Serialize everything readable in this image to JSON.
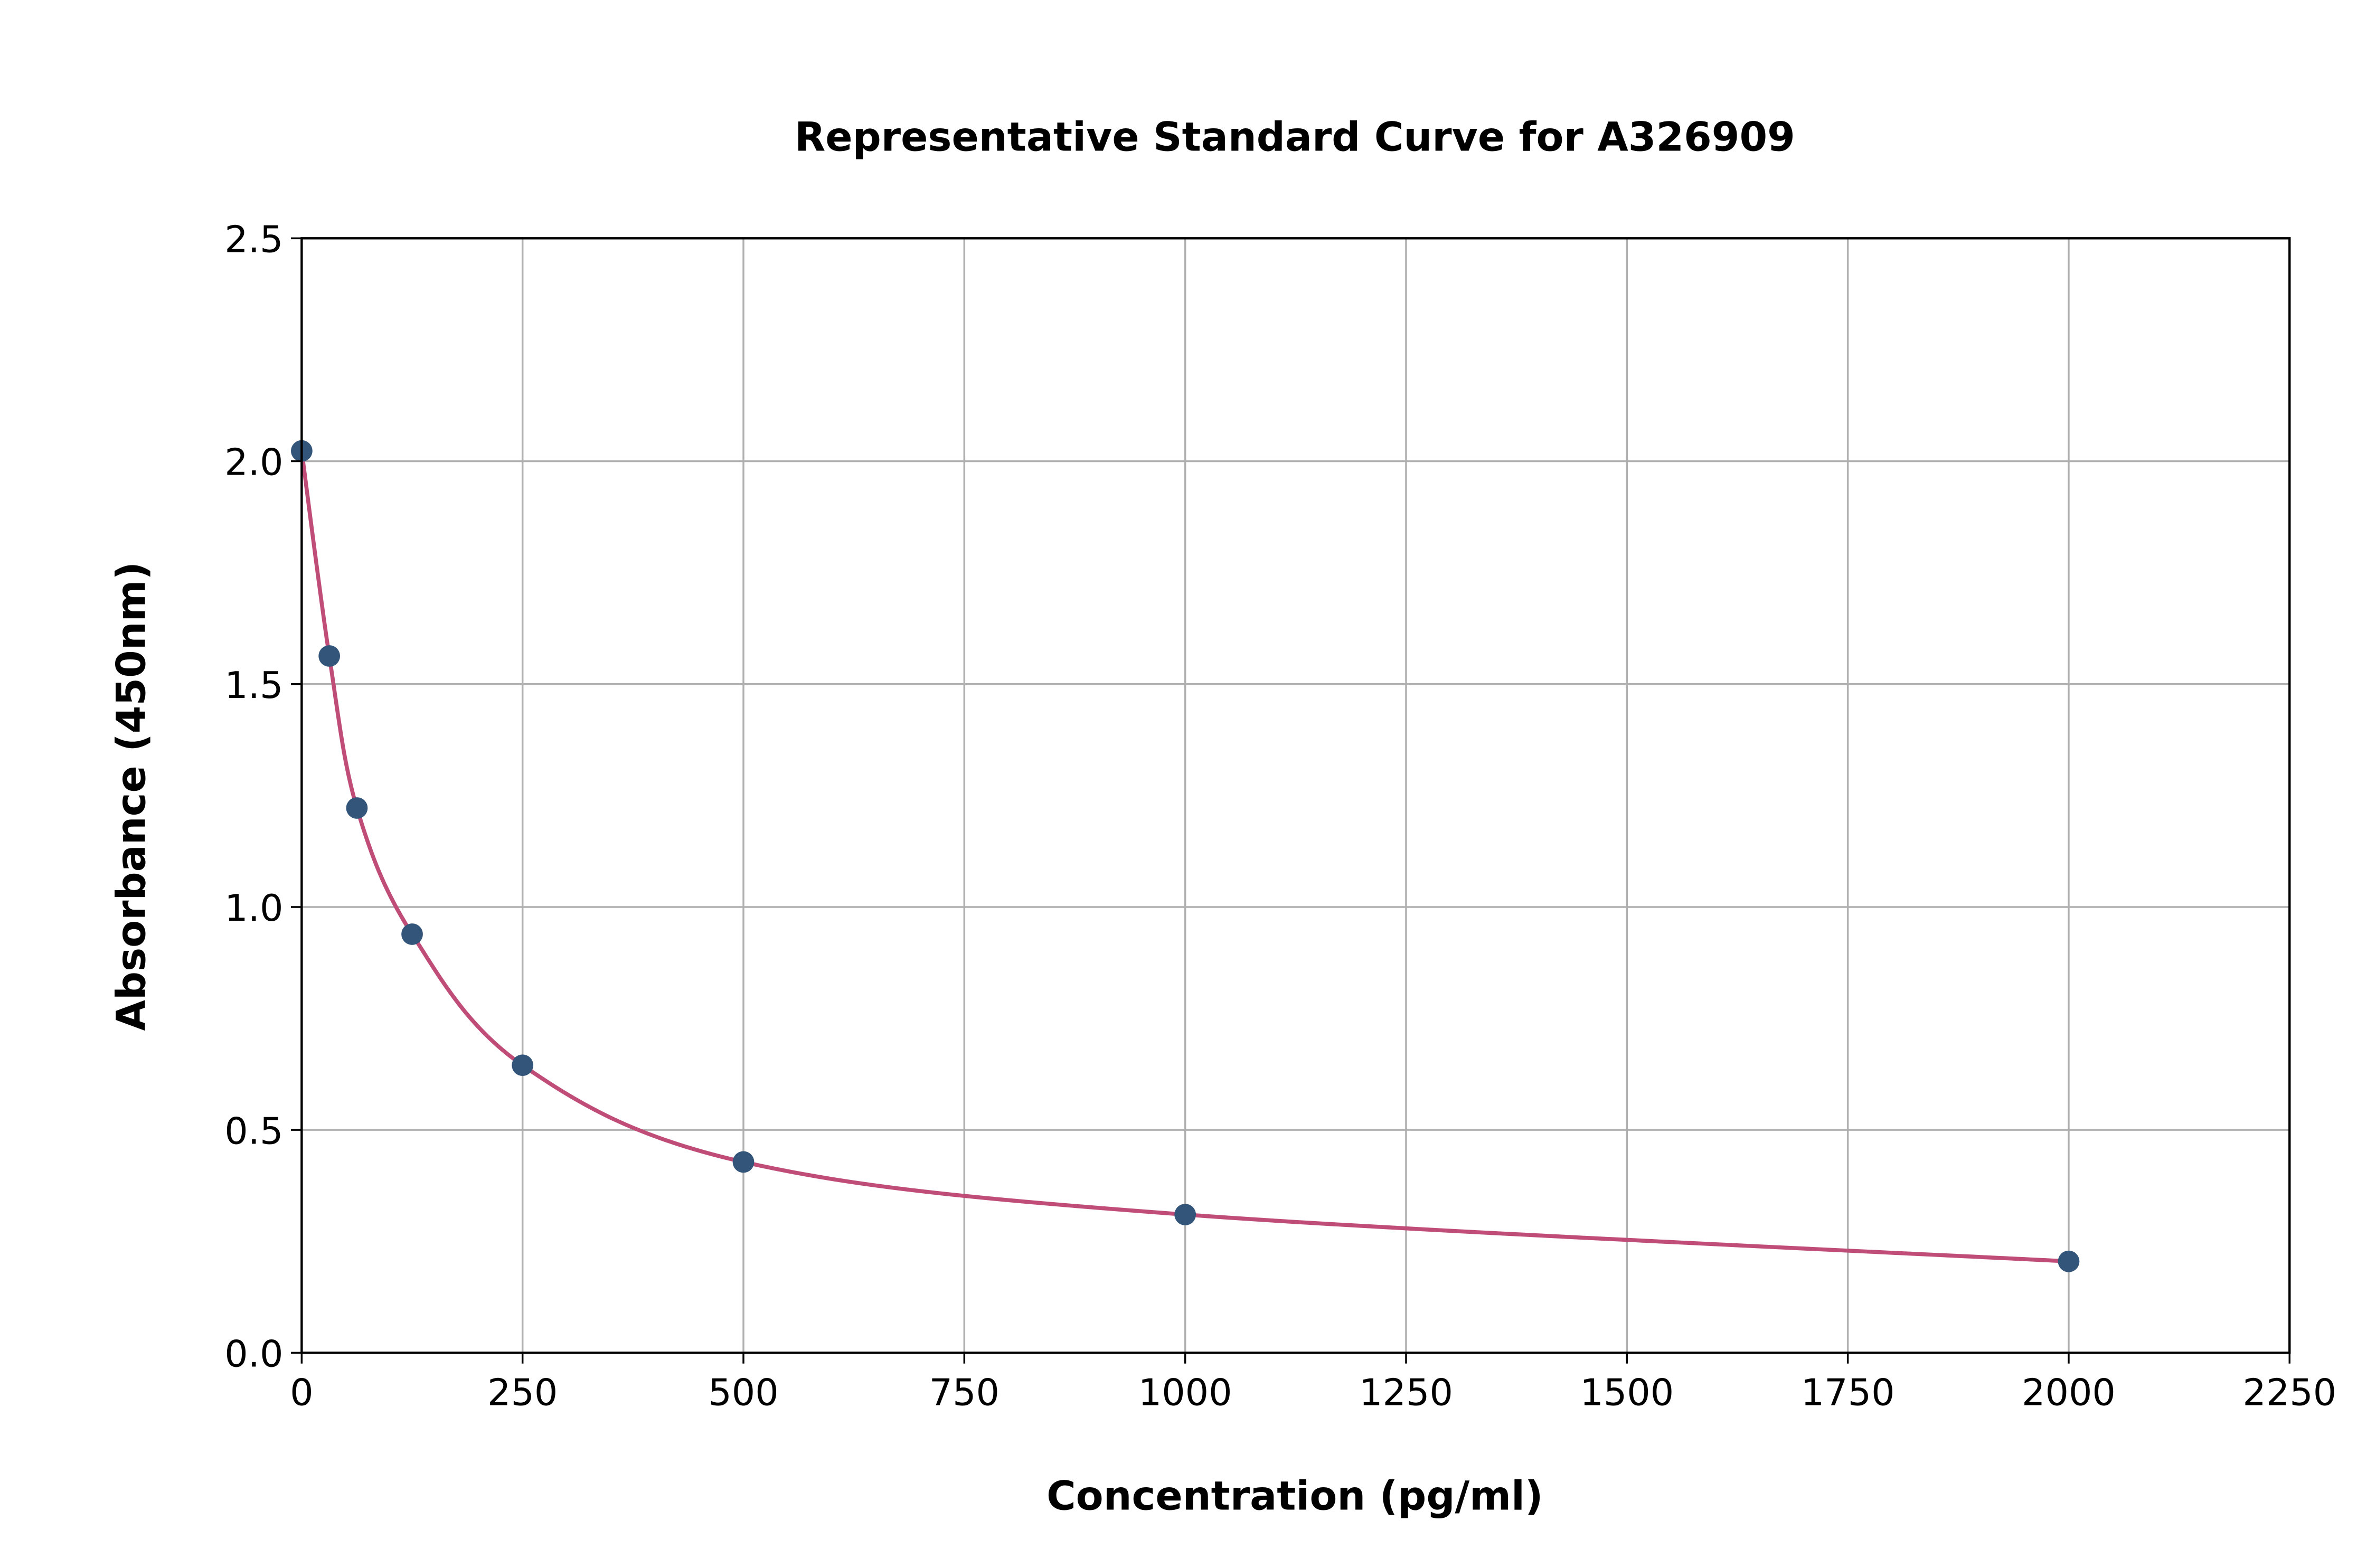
{
  "chart_data": {
    "type": "scatter",
    "title": "Representative Standard Curve for A326909",
    "xlabel": "Concentration (pg/ml)",
    "ylabel": "Absorbance (450nm)",
    "xlim": [
      0,
      2250
    ],
    "ylim": [
      0,
      2.5
    ],
    "xticks": [
      0,
      250,
      500,
      750,
      1000,
      1250,
      1500,
      1750,
      2000,
      2250
    ],
    "yticks": [
      "0.0",
      "0.5",
      "1.0",
      "1.5",
      "2.0",
      "2.5"
    ],
    "grid": true,
    "legend": "none",
    "series": [
      {
        "x": [
          0,
          31.25,
          62.5,
          125,
          250,
          500,
          1000,
          2000
        ],
        "y": [
          2.023,
          1.563,
          1.222,
          0.939,
          0.645,
          0.428,
          0.31,
          0.205
        ],
        "marker_color": "#34557a",
        "fit_curve_color": "#c04d78"
      }
    ]
  }
}
